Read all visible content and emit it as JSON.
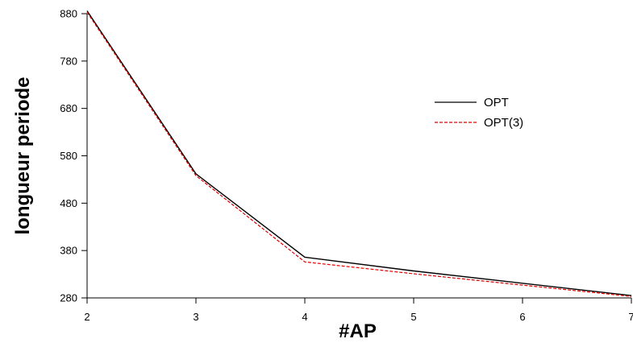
{
  "chart_data": {
    "type": "line",
    "title": "",
    "xlabel": "#AP",
    "ylabel": "longueur periode",
    "x": [
      2,
      3,
      4,
      5,
      6,
      7
    ],
    "x_ticks": [
      "2",
      "3",
      "4",
      "5",
      "6",
      "7"
    ],
    "xlim": [
      2,
      7
    ],
    "y_ticks": [
      "280",
      "380",
      "480",
      "580",
      "680",
      "780",
      "880"
    ],
    "ylim": [
      280,
      880
    ],
    "grid": false,
    "legend_position": "top-right",
    "series": [
      {
        "name": "OPT",
        "values": [
          886,
          542,
          366,
          337,
          311,
          285
        ],
        "color": "#000000",
        "style": "solid"
      },
      {
        "name": "OPT(3)",
        "values": [
          883,
          538,
          356,
          331,
          307,
          283
        ],
        "color": "#e00000",
        "style": "dashed"
      }
    ]
  }
}
